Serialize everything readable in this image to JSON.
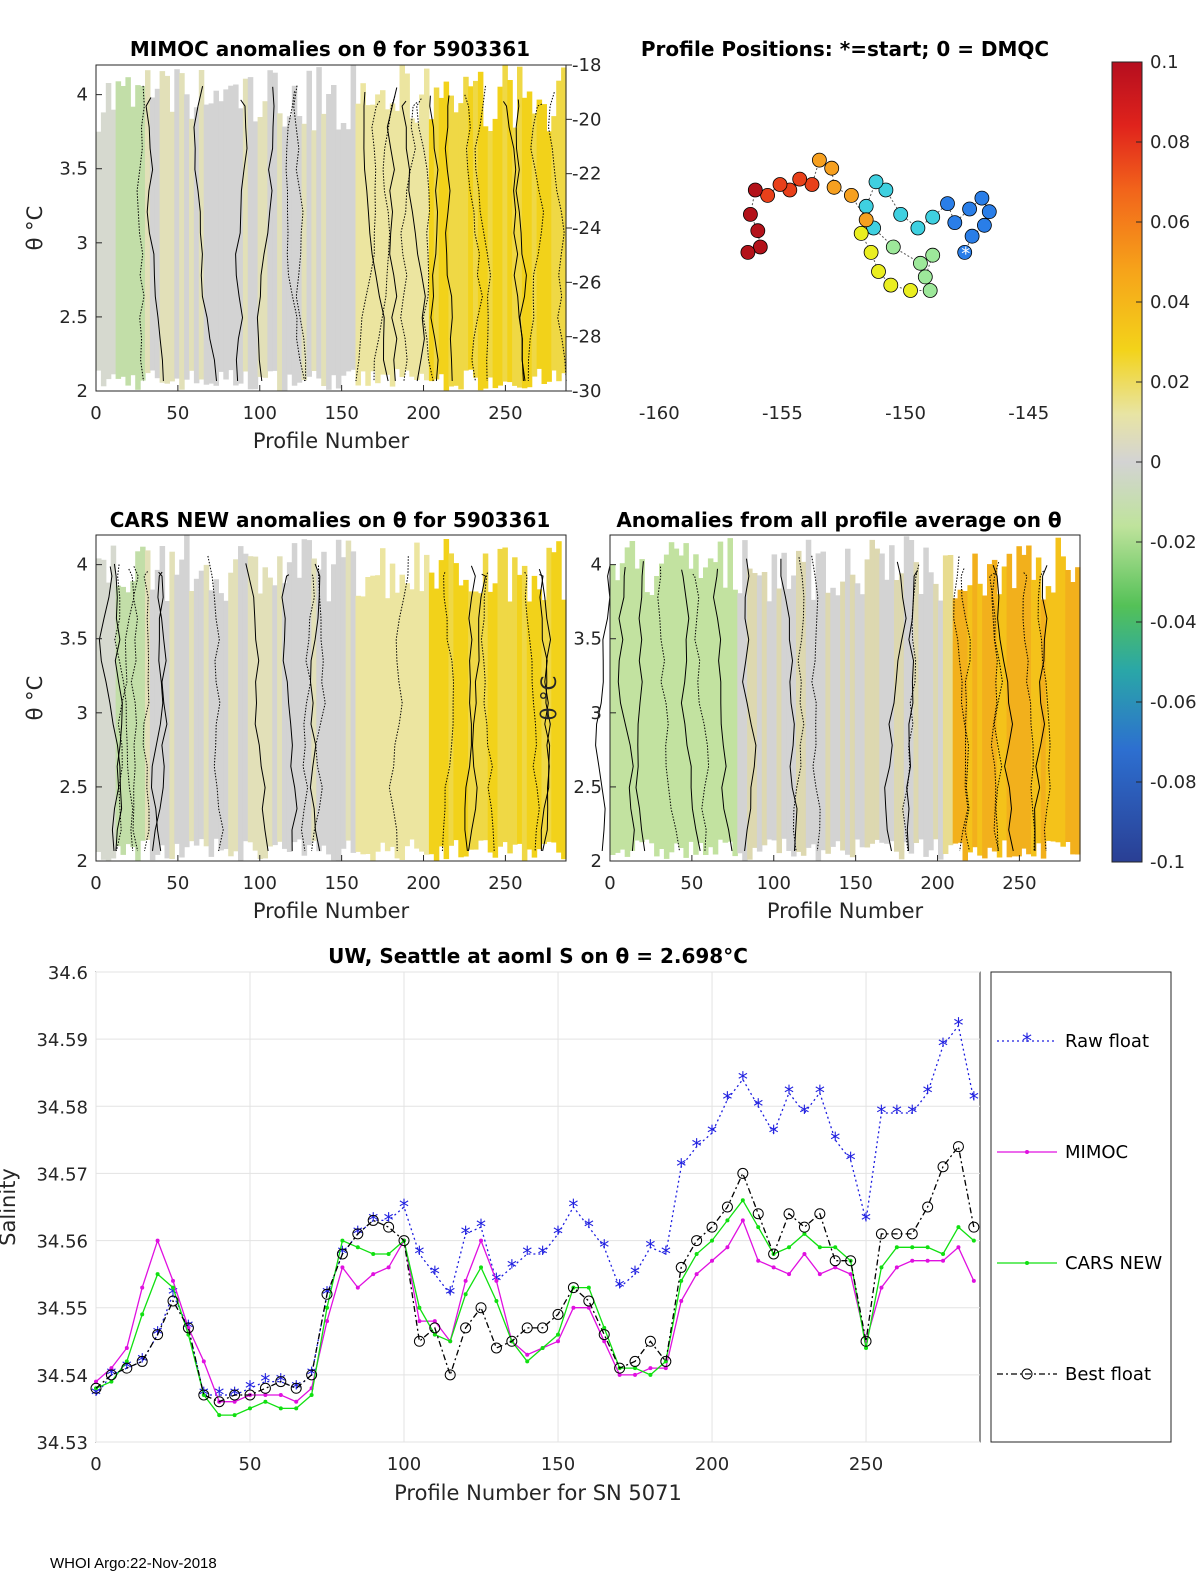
{
  "footer": "WHOI Argo:22-Nov-2018",
  "colors": {
    "raw": "#1f1fe0",
    "mimoc": "#e010e0",
    "cars": "#10e010",
    "best": "#000000",
    "grey": "#d3d3d3",
    "yellow": "#f2d21a",
    "green": "#b9df9a"
  },
  "chart_data": [
    {
      "id": "mimoc",
      "type": "heatmap",
      "title": "MIMOC anomalies on θ  for 5903361",
      "xlabel": "Profile Number",
      "ylabel": "θ °C",
      "xlim": [
        0,
        287
      ],
      "ylim": [
        2,
        4.2
      ],
      "xticks": [
        "0",
        "50",
        "100",
        "150",
        "200",
        "250"
      ],
      "yticks": [
        "2",
        "2.5",
        "3",
        "3.5",
        "4"
      ]
    },
    {
      "id": "positions",
      "type": "scatter",
      "title": "Profile Positions: *=start; 0 = DMQC",
      "xlim": [
        -162,
        -143
      ],
      "ylim": [
        -30,
        -18
      ],
      "xticks": [
        "-160",
        "-155",
        "-150",
        "-145"
      ],
      "yticks": [
        "-18",
        "-20",
        "-22",
        "-24",
        "-26",
        "-28",
        "-30"
      ],
      "track": [
        [
          -147.6,
          -24.9
        ],
        [
          -147.3,
          -24.3
        ],
        [
          -146.8,
          -23.9
        ],
        [
          -146.6,
          -23.4
        ],
        [
          -146.9,
          -22.9
        ],
        [
          -147.4,
          -23.3
        ],
        [
          -148.0,
          -23.8
        ],
        [
          -148.3,
          -23.1
        ],
        [
          -148.9,
          -23.6
        ],
        [
          -149.5,
          -24.0
        ],
        [
          -150.2,
          -23.5
        ],
        [
          -150.8,
          -22.6
        ],
        [
          -151.2,
          -22.3
        ],
        [
          -151.6,
          -23.2
        ],
        [
          -151.3,
          -24.0
        ],
        [
          -150.5,
          -24.7
        ],
        [
          -149.4,
          -25.3
        ],
        [
          -148.9,
          -25.0
        ],
        [
          -149.2,
          -25.8
        ],
        [
          -149.0,
          -26.3
        ],
        [
          -149.8,
          -26.3
        ],
        [
          -150.6,
          -26.1
        ],
        [
          -151.1,
          -25.6
        ],
        [
          -151.4,
          -24.9
        ],
        [
          -151.8,
          -24.2
        ],
        [
          -151.6,
          -23.7
        ],
        [
          -152.2,
          -22.8
        ],
        [
          -152.9,
          -22.5
        ],
        [
          -153.0,
          -21.8
        ],
        [
          -153.5,
          -21.5
        ],
        [
          -153.8,
          -22.4
        ],
        [
          -154.3,
          -22.2
        ],
        [
          -154.7,
          -22.6
        ],
        [
          -155.1,
          -22.4
        ],
        [
          -155.6,
          -22.8
        ],
        [
          -156.1,
          -22.6
        ],
        [
          -156.3,
          -23.5
        ],
        [
          -156.0,
          -24.1
        ],
        [
          -155.9,
          -24.7
        ],
        [
          -156.4,
          -24.9
        ]
      ],
      "markers": [
        "start",
        "DMQC"
      ]
    },
    {
      "id": "colorbar",
      "type": "heatmap",
      "clim": [
        -0.1,
        0.1
      ],
      "ticks": [
        "0.1",
        "0.08",
        "0.06",
        "0.04",
        "0.02",
        "0",
        "-0.02",
        "-0.04",
        "-0.06",
        "-0.08",
        "-0.1"
      ]
    },
    {
      "id": "cars",
      "type": "heatmap",
      "title": "CARS NEW anomalies on θ for 5903361",
      "xlabel": "Profile Number",
      "ylabel": "θ °C",
      "xlim": [
        0,
        287
      ],
      "ylim": [
        2,
        4.2
      ],
      "xticks": [
        "0",
        "50",
        "100",
        "150",
        "200",
        "250"
      ],
      "yticks": [
        "2",
        "2.5",
        "3",
        "3.5",
        "4"
      ]
    },
    {
      "id": "avg",
      "type": "heatmap",
      "title": "Anomalies from all profile average on θ",
      "xlabel": "Profile Number",
      "ylabel": "θ °C",
      "xlim": [
        0,
        287
      ],
      "ylim": [
        2,
        4.2
      ],
      "xticks": [
        "0",
        "50",
        "100",
        "150",
        "200",
        "250"
      ],
      "yticks": [
        "2",
        "2.5",
        "3",
        "3.5",
        "4"
      ]
    },
    {
      "id": "salinity",
      "type": "line",
      "title": "UW, Seattle at aoml S on θ = 2.698°C",
      "xlabel": "Profile Number for SN 5071",
      "ylabel": "Salinity",
      "xlim": [
        0,
        287
      ],
      "ylim": [
        34.53,
        34.6
      ],
      "xticks": [
        "0",
        "50",
        "100",
        "150",
        "200",
        "250"
      ],
      "yticks": [
        "34.53",
        "34.54",
        "34.55",
        "34.56",
        "34.57",
        "34.58",
        "34.59",
        "34.6"
      ],
      "x": [
        0,
        5,
        10,
        15,
        20,
        25,
        30,
        35,
        40,
        45,
        50,
        55,
        60,
        65,
        70,
        75,
        80,
        85,
        90,
        95,
        100,
        105,
        110,
        115,
        120,
        125,
        130,
        135,
        140,
        145,
        150,
        155,
        160,
        165,
        170,
        175,
        180,
        185,
        190,
        195,
        200,
        205,
        210,
        215,
        220,
        225,
        230,
        235,
        240,
        245,
        250,
        255,
        260,
        265,
        270,
        275,
        280,
        285
      ],
      "series": [
        {
          "name": "Raw float",
          "values": [
            34.537,
            34.54,
            34.541,
            34.542,
            34.546,
            34.552,
            34.547,
            34.537,
            34.537,
            34.537,
            34.538,
            34.539,
            34.539,
            34.538,
            34.54,
            34.552,
            34.558,
            34.561,
            34.563,
            34.563,
            34.565,
            34.558,
            34.555,
            34.552,
            34.561,
            34.562,
            34.554,
            34.556,
            34.558,
            34.558,
            34.561,
            34.565,
            34.562,
            34.559,
            34.553,
            34.555,
            34.559,
            34.558,
            34.571,
            34.574,
            34.576,
            34.581,
            34.584,
            34.58,
            34.576,
            34.582,
            34.579,
            34.582,
            34.575,
            34.572,
            34.563,
            34.579,
            34.579,
            34.579,
            34.582,
            34.589,
            34.592,
            34.581
          ]
        },
        {
          "name": "MIMOC",
          "values": [
            34.539,
            34.541,
            34.544,
            34.553,
            34.56,
            34.554,
            34.547,
            34.542,
            34.536,
            34.536,
            34.537,
            34.537,
            34.537,
            34.536,
            34.538,
            34.548,
            34.556,
            34.553,
            34.555,
            34.556,
            34.56,
            34.548,
            34.548,
            34.545,
            34.554,
            34.56,
            34.554,
            34.545,
            34.543,
            34.544,
            34.545,
            34.55,
            34.55,
            34.545,
            34.54,
            34.54,
            34.541,
            34.541,
            34.551,
            34.555,
            34.557,
            34.559,
            34.563,
            34.557,
            34.556,
            34.555,
            34.558,
            34.555,
            34.556,
            34.555,
            34.545,
            34.553,
            34.556,
            34.557,
            34.557,
            34.557,
            34.559,
            34.554
          ]
        },
        {
          "name": "CARS NEW",
          "values": [
            34.538,
            34.539,
            34.542,
            34.549,
            34.555,
            34.553,
            34.546,
            34.537,
            34.534,
            34.534,
            34.535,
            34.536,
            34.535,
            34.535,
            34.537,
            34.55,
            34.56,
            34.559,
            34.558,
            34.558,
            34.56,
            34.55,
            34.546,
            34.545,
            34.552,
            34.556,
            34.551,
            34.545,
            34.542,
            34.544,
            34.546,
            34.553,
            34.553,
            34.547,
            34.541,
            34.541,
            34.54,
            34.542,
            34.554,
            34.558,
            34.56,
            34.563,
            34.566,
            34.562,
            34.558,
            34.559,
            34.561,
            34.559,
            34.559,
            34.557,
            34.544,
            34.556,
            34.559,
            34.559,
            34.559,
            34.558,
            34.562,
            34.56
          ]
        },
        {
          "name": "Best float",
          "values": [
            34.538,
            34.54,
            34.541,
            34.542,
            34.546,
            34.551,
            34.547,
            34.537,
            34.536,
            34.537,
            34.537,
            34.538,
            34.539,
            34.538,
            34.54,
            34.552,
            34.558,
            34.561,
            34.563,
            34.562,
            34.56,
            34.545,
            34.547,
            34.54,
            34.547,
            34.55,
            34.544,
            34.545,
            34.547,
            34.547,
            34.549,
            34.553,
            34.551,
            34.546,
            34.541,
            34.542,
            34.545,
            34.542,
            34.556,
            34.56,
            34.562,
            34.565,
            34.57,
            34.564,
            34.558,
            34.564,
            34.562,
            34.564,
            34.557,
            34.557,
            34.545,
            34.561,
            34.561,
            34.561,
            34.565,
            34.571,
            34.574,
            34.562
          ]
        }
      ]
    }
  ]
}
